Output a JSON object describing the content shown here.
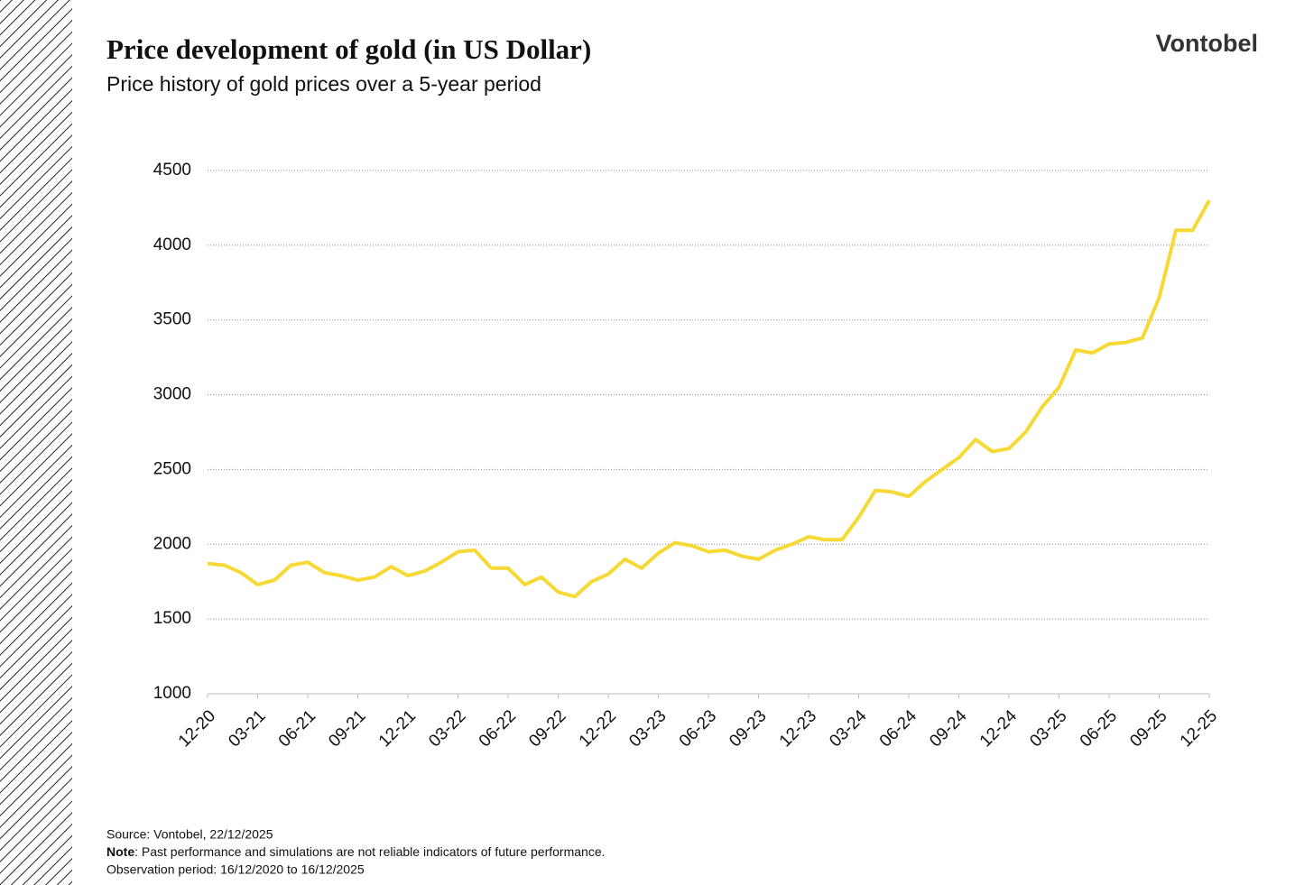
{
  "chart_data": {
    "type": "line",
    "title": "Price development of gold (in US Dollar)",
    "subtitle": "Price history of gold prices over a 5-year period",
    "brand": "Vontobel",
    "source": "Source: Vontobel, 22/12/2025",
    "note_label": "Note",
    "note": ": Past performance and simulations are not reliable indicators of future performance.",
    "observation": "Observation period: 16/12/2020 to 16/12/2025",
    "categories": [
      "12-20",
      null,
      null,
      "03-21",
      null,
      null,
      "06-21",
      null,
      null,
      "09-21",
      null,
      null,
      "12-21",
      null,
      null,
      "03-22",
      null,
      null,
      "06-22",
      null,
      null,
      "09-22",
      null,
      null,
      "12-22",
      null,
      null,
      "03-23",
      null,
      null,
      "06-23",
      null,
      null,
      "09-23",
      null,
      null,
      "12-23",
      null,
      null,
      "03-24",
      null,
      null,
      "06-24",
      null,
      null,
      "09-24",
      null,
      null,
      "12-24",
      null,
      null,
      "03-25",
      null,
      null,
      "06-25",
      null,
      null,
      "09-25",
      null,
      null,
      "12-25"
    ],
    "series": [
      {
        "color": "#f7d935",
        "values": [
          1870,
          1860,
          1810,
          1730,
          1760,
          1860,
          1880,
          1810,
          1790,
          1760,
          1780,
          1850,
          1790,
          1820,
          1880,
          1950,
          1960,
          1840,
          1840,
          1730,
          1780,
          1680,
          1650,
          1750,
          1800,
          1900,
          1840,
          1940,
          2010,
          1990,
          1950,
          1960,
          1920,
          1900,
          1960,
          2000,
          2050,
          2030,
          2030,
          2180,
          2360,
          2350,
          2320,
          2420,
          2500,
          2580,
          2700,
          2620,
          2640,
          2750,
          2920,
          3050,
          3300,
          3280,
          3340,
          3350,
          3380,
          3650,
          4100,
          4100,
          4300
        ]
      }
    ],
    "ylim": [
      1000,
      4500
    ],
    "yticks": [
      1000,
      1500,
      2000,
      2500,
      3000,
      3500,
      4000,
      4500
    ],
    "grid": true
  }
}
